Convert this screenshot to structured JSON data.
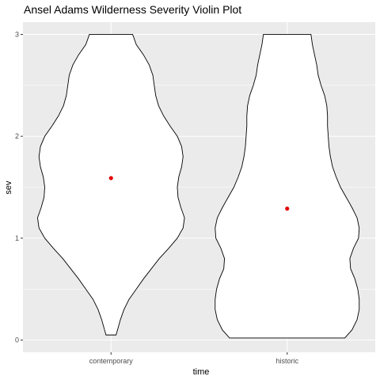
{
  "chart_data": {
    "type": "violin",
    "title": "Ansel Adams Wilderness Severity Violin Plot",
    "xlabel": "time",
    "ylabel": "sev",
    "categories": [
      "contemporary",
      "historic"
    ],
    "ylim": [
      -0.12,
      3.12
    ],
    "yticks": [
      0,
      1,
      2,
      3
    ],
    "grid": true,
    "legend": "none",
    "colors": {
      "panel": "#ebebeb",
      "grid_major": "#ffffff",
      "violin_fill": "#ffffff",
      "violin_outline": "#000000",
      "mean_point": "#e00000",
      "tick": "#333333"
    },
    "violins": [
      {
        "category": "contemporary",
        "profile": [
          [
            0.05,
            0.07
          ],
          [
            0.1,
            0.09
          ],
          [
            0.2,
            0.13
          ],
          [
            0.3,
            0.18
          ],
          [
            0.4,
            0.25
          ],
          [
            0.5,
            0.35
          ],
          [
            0.6,
            0.45
          ],
          [
            0.7,
            0.56
          ],
          [
            0.8,
            0.67
          ],
          [
            0.9,
            0.8
          ],
          [
            1.0,
            0.92
          ],
          [
            1.1,
            1.0
          ],
          [
            1.2,
            1.02
          ],
          [
            1.3,
            0.97
          ],
          [
            1.4,
            0.93
          ],
          [
            1.5,
            0.92
          ],
          [
            1.6,
            0.94
          ],
          [
            1.7,
            0.98
          ],
          [
            1.8,
            1.0
          ],
          [
            1.9,
            0.98
          ],
          [
            2.0,
            0.92
          ],
          [
            2.1,
            0.82
          ],
          [
            2.2,
            0.73
          ],
          [
            2.3,
            0.66
          ],
          [
            2.4,
            0.62
          ],
          [
            2.5,
            0.6
          ],
          [
            2.6,
            0.58
          ],
          [
            2.7,
            0.53
          ],
          [
            2.8,
            0.45
          ],
          [
            2.9,
            0.35
          ],
          [
            3.0,
            0.3
          ]
        ],
        "mean": 1.59
      },
      {
        "category": "historic",
        "profile": [
          [
            0.02,
            0.8
          ],
          [
            0.1,
            0.9
          ],
          [
            0.2,
            0.97
          ],
          [
            0.3,
            1.0
          ],
          [
            0.4,
            1.0
          ],
          [
            0.5,
            0.98
          ],
          [
            0.6,
            0.94
          ],
          [
            0.7,
            0.88
          ],
          [
            0.8,
            0.87
          ],
          [
            0.9,
            0.92
          ],
          [
            1.0,
            0.99
          ],
          [
            1.1,
            1.0
          ],
          [
            1.2,
            0.97
          ],
          [
            1.3,
            0.9
          ],
          [
            1.4,
            0.82
          ],
          [
            1.5,
            0.74
          ],
          [
            1.6,
            0.68
          ],
          [
            1.7,
            0.63
          ],
          [
            1.8,
            0.6
          ],
          [
            1.9,
            0.58
          ],
          [
            2.0,
            0.57
          ],
          [
            2.1,
            0.56
          ],
          [
            2.2,
            0.56
          ],
          [
            2.3,
            0.55
          ],
          [
            2.4,
            0.52
          ],
          [
            2.5,
            0.47
          ],
          [
            2.6,
            0.43
          ],
          [
            2.7,
            0.41
          ],
          [
            2.8,
            0.38
          ],
          [
            2.9,
            0.35
          ],
          [
            3.0,
            0.33
          ]
        ],
        "mean": 1.29
      }
    ]
  }
}
